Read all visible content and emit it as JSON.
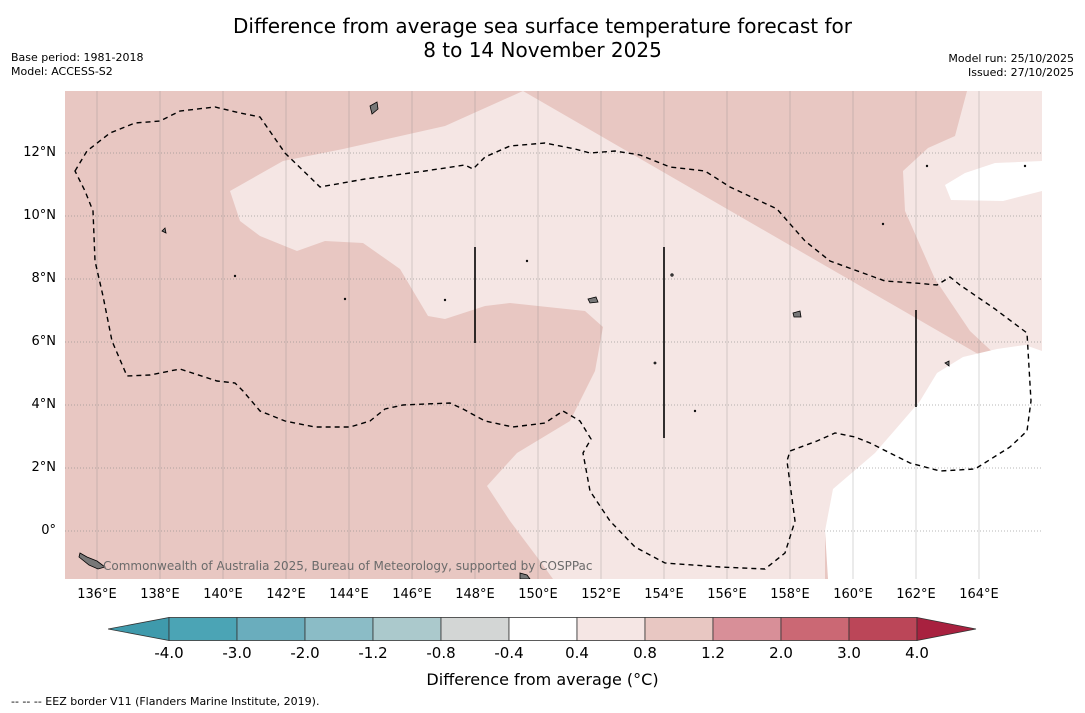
{
  "title": {
    "line1": "Difference from average sea surface temperature forecast for",
    "line2": "8 to 14 November 2025"
  },
  "meta": {
    "base_period": "Base period: 1981-2018",
    "model": "Model: ACCESS-S2",
    "model_run": "Model run: 25/10/2025",
    "issued": "Issued: 27/10/2025"
  },
  "map": {
    "lat_labels": [
      "12°N",
      "10°N",
      "8°N",
      "6°N",
      "4°N",
      "2°N",
      "0°"
    ],
    "lon_labels": [
      "136°E",
      "138°E",
      "140°E",
      "142°E",
      "144°E",
      "146°E",
      "148°E",
      "150°E",
      "152°E",
      "154°E",
      "156°E",
      "158°E",
      "160°E",
      "162°E",
      "164°E"
    ],
    "copyright": "Commonwealth of Australia 2025, Bureau of Meteorology, supported by COSPPac",
    "colors": {
      "anom_0_8_to_1_2": "#e8c7c2",
      "anom_0_4_to_0_8": "#f5e6e4",
      "anom_neutral": "#ffffff",
      "gridline": "#888888",
      "eez_border": "#000000",
      "land": "#777777"
    }
  },
  "colorbar": {
    "title": "Difference from average (°C)",
    "ticks": [
      "-4.0",
      "-3.0",
      "-2.0",
      "-1.2",
      "-0.8",
      "-0.4",
      "0.4",
      "0.8",
      "1.2",
      "2.0",
      "3.0",
      "4.0"
    ],
    "colors": [
      "#3f9aac",
      "#4ba4b5",
      "#6aadbd",
      "#8bbcc6",
      "#abc9cc",
      "#d3d6d5",
      "#ffffff",
      "#f5e6e4",
      "#e8c7c2",
      "#d88f98",
      "#cb6874",
      "#bb4658",
      "#a8213f"
    ]
  },
  "footnote": "--  --  -- EEZ border V11 (Flanders Marine Institute, 2019)."
}
